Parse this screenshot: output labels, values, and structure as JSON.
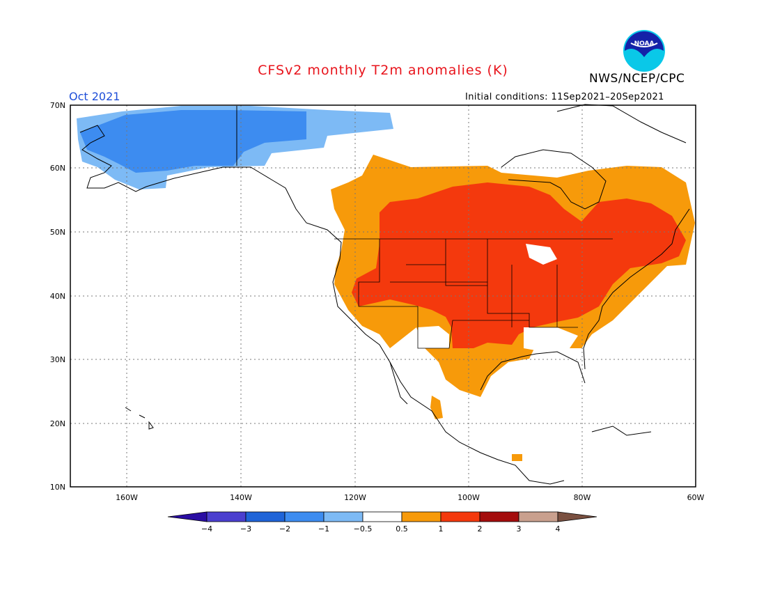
{
  "header": {
    "title": "CFSv2 monthly T2m anomalies (K)",
    "agency": "NWS/NCEP/CPC",
    "logo_text": "NOAA",
    "month": "Oct 2021",
    "initial_conditions": "Initial conditions: 11Sep2021–20Sep2021"
  },
  "map": {
    "lat_labels": [
      "70N",
      "60N",
      "50N",
      "40N",
      "30N",
      "20N",
      "10N"
    ],
    "lon_labels": [
      "160W",
      "140W",
      "120W",
      "100W",
      "80W",
      "60W"
    ]
  },
  "colorbar": {
    "labels": [
      "−4",
      "−3",
      "−2",
      "−1",
      "−0.5",
      "0.5",
      "1",
      "2",
      "3",
      "4"
    ],
    "colors": [
      "#2a0da3",
      "#4b3fcf",
      "#1f64d8",
      "#3d8cf0",
      "#7dbaf5",
      "#ffffff",
      "#f79a0a",
      "#f4390d",
      "#a40d0d",
      "#c9a08e",
      "#7a5040"
    ]
  }
}
